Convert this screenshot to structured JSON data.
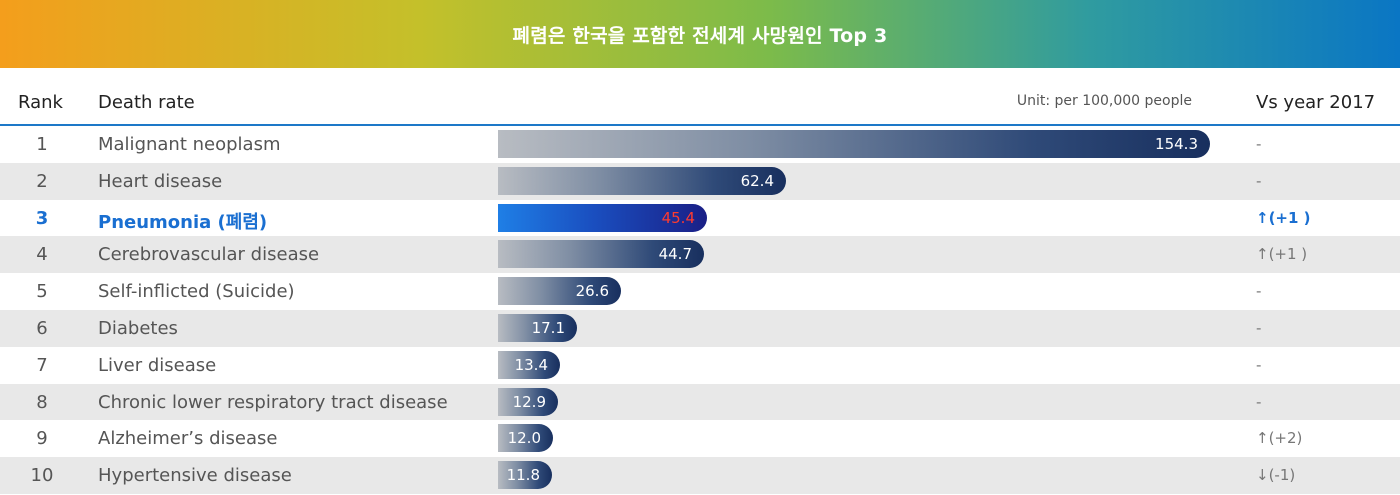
{
  "banner": {
    "title": "폐렴은 한국을 포함한 전세계 사망원인 Top 3"
  },
  "header": {
    "rank_label": "Rank",
    "death_label": "Death rate",
    "unit_label": "Unit: per 100,000 people",
    "vs_label": "Vs year 2017"
  },
  "colors": {
    "accent": "#1a6fd1",
    "highlight_value": "#ff3b2f",
    "bar_dark": "#182f5e"
  },
  "chart_data": {
    "type": "bar",
    "orientation": "horizontal",
    "ylabel": "Death rate",
    "unit": "per 100,000 people",
    "xlim": [
      0,
      154.3
    ],
    "ranks": [
      "1",
      "2",
      "3",
      "4",
      "5",
      "6",
      "7",
      "8",
      "9",
      "10"
    ],
    "categories": [
      "Malignant neoplasm",
      "Heart disease",
      "Pneumonia (폐렴)",
      "Cerebrovascular disease",
      "Self-inflicted (Suicide)",
      "Diabetes",
      "Liver disease",
      "Chronic lower respiratory tract disease",
      "Alzheimer’s disease",
      "Hypertensive disease"
    ],
    "values": [
      154.3,
      62.4,
      45.4,
      44.7,
      26.6,
      17.1,
      13.4,
      12.9,
      12.0,
      11.8
    ],
    "value_labels": [
      "154.3",
      "62.4",
      "45.4",
      "44.7",
      "26.6",
      "17.1",
      "13.4",
      "12.9",
      "12.0",
      "11.8"
    ],
    "vs_2017": [
      "-",
      "-",
      "↑(+1 )",
      "↑(+1 )",
      "-",
      "-",
      "-",
      "-",
      "↑(+2)",
      "↓(-1)"
    ],
    "highlight_index": 2
  }
}
